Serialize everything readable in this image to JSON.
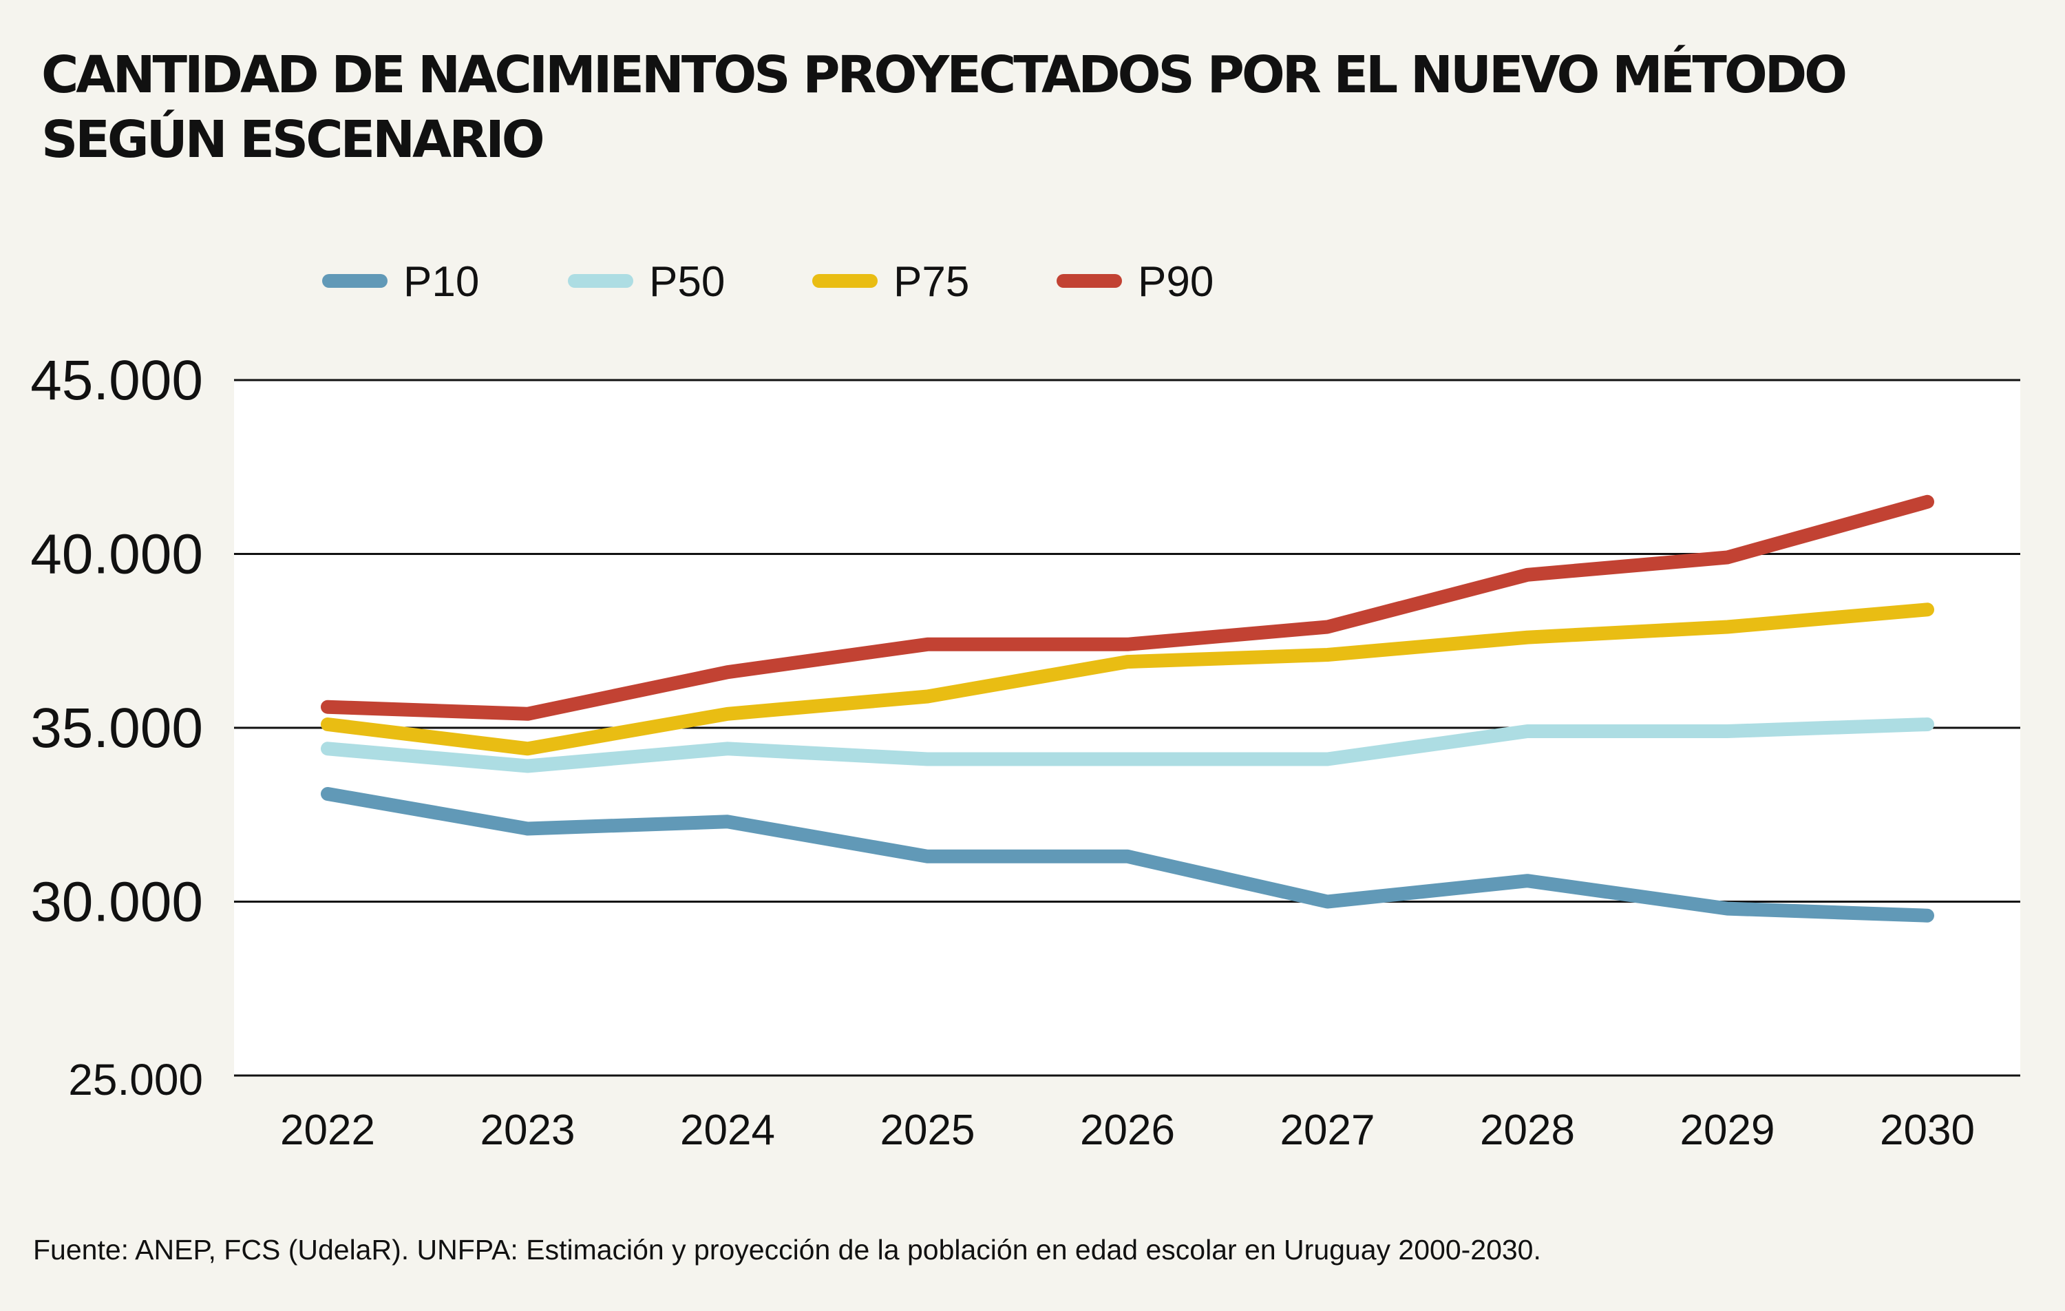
{
  "title_lines": [
    "CANTIDAD DE NACIMIENTOS PROYECTADOS POR EL NUEVO MÉTODO",
    "SEGÚN ESCENARIO"
  ],
  "source": "Fuente: ANEP, FCS (UdelaR). UNFPA: Estimación y proyección de la población en edad escolar en Uruguay 2000-2030.",
  "colors": {
    "background": "#f5f4ee",
    "plot_background": "#ffffff",
    "gridline": "#111111",
    "P10": "#6199b7",
    "P50": "#addde3",
    "P75": "#e9bd13",
    "P90": "#c24233"
  },
  "chart_data": {
    "type": "line",
    "title": "CANTIDAD DE NACIMIENTOS PROYECTADOS POR EL NUEVO MÉTODO SEGÚN ESCENARIO",
    "xlabel": "",
    "ylabel": "",
    "x": [
      "2022",
      "2023",
      "2024",
      "2025",
      "2026",
      "2027",
      "2028",
      "2029",
      "2030"
    ],
    "ylim": [
      25000,
      45000
    ],
    "yticks": [
      25000,
      30000,
      35000,
      40000,
      45000
    ],
    "ytick_labels": [
      "25.000",
      "30.000",
      "35.000",
      "40.000",
      "45.000"
    ],
    "grid": "horizontal",
    "legend_position": "top-left",
    "series": [
      {
        "name": "P10",
        "values": [
          33100,
          32100,
          32300,
          31300,
          31300,
          30000,
          30600,
          29800,
          29600
        ]
      },
      {
        "name": "P50",
        "values": [
          34400,
          33900,
          34400,
          34100,
          34100,
          34100,
          34900,
          34900,
          35100
        ]
      },
      {
        "name": "P75",
        "values": [
          35100,
          34400,
          35400,
          35900,
          36900,
          37100,
          37600,
          37900,
          38400
        ]
      },
      {
        "name": "P90",
        "values": [
          35600,
          35400,
          36600,
          37400,
          37400,
          37900,
          39400,
          39900,
          41500
        ]
      }
    ]
  }
}
